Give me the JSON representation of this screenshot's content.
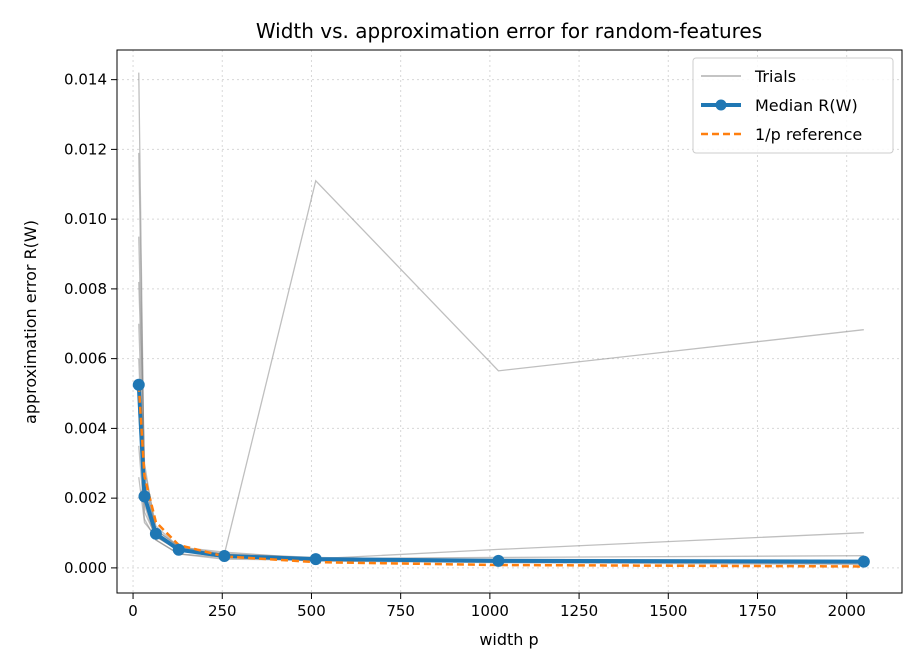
{
  "chart_data": {
    "type": "line",
    "title": "Width vs. approximation error for random-features",
    "xlabel": "width p",
    "ylabel": "approximation error  R(W)",
    "xlim": [
      -45,
      2155
    ],
    "ylim": [
      -0.00072,
      0.01485
    ],
    "xticks": [
      0,
      250,
      500,
      750,
      1000,
      1250,
      1500,
      1750,
      2000
    ],
    "yticks": [
      0.0,
      0.002,
      0.004,
      0.006,
      0.008,
      0.01,
      0.012,
      0.014
    ],
    "xtick_labels": [
      "0",
      "250",
      "500",
      "750",
      "1000",
      "1250",
      "1500",
      "1750",
      "2000"
    ],
    "ytick_labels": [
      "0.000",
      "0.002",
      "0.004",
      "0.006",
      "0.008",
      "0.010",
      "0.012",
      "0.014"
    ],
    "grid": true,
    "legend_position": "top-right",
    "x": [
      16,
      32,
      64,
      128,
      256,
      512,
      1024,
      2048
    ],
    "trials": [
      [
        0.0142,
        0.002,
        0.001,
        0.0005,
        0.0004,
        0.0111,
        0.00565,
        0.00683
      ],
      [
        0.0119,
        0.0025,
        0.0011,
        0.0006,
        0.00035,
        0.00026,
        0.00053,
        0.00101
      ],
      [
        0.0095,
        0.0028,
        0.0012,
        0.0006,
        0.00045,
        0.00027,
        0.0003,
        0.00035
      ],
      [
        0.0082,
        0.003,
        0.001,
        0.0005,
        0.0004,
        0.0003,
        0.0002,
        0.00015
      ],
      [
        0.007,
        0.0022,
        0.0009,
        0.0005,
        0.0003,
        0.00025,
        0.00025,
        0.0002
      ],
      [
        0.006,
        0.0018,
        0.0008,
        0.0004,
        0.00025,
        0.00022,
        0.00018,
        0.00012
      ],
      [
        0.0045,
        0.0016,
        0.0009,
        0.0005,
        0.0003,
        0.0002,
        0.00015,
        0.0001
      ],
      [
        0.0035,
        0.0014,
        0.0008,
        0.0004,
        0.0003,
        0.00025,
        0.00022,
        0.00018
      ],
      [
        0.0026,
        0.0013,
        0.0009,
        0.0005,
        0.00035,
        0.00028,
        0.00024,
        0.0002
      ],
      [
        0.002,
        0.0024,
        0.0011,
        0.0006,
        0.0004,
        0.00023,
        0.00021,
        0.00016
      ]
    ],
    "series": [
      {
        "name": "Median R(W)",
        "values": [
          0.00525,
          0.00205,
          0.00098,
          0.00052,
          0.00034,
          0.00025,
          0.0002,
          0.00018
        ],
        "color": "#1f77b4"
      },
      {
        "name": "1/p reference",
        "values": [
          0.00525,
          0.002625,
          0.0013125,
          0.00065625,
          0.000328125,
          0.0001640625,
          8.203125e-05,
          4.1015625e-05
        ],
        "color": "#ff7f0e"
      }
    ],
    "legend": [
      {
        "name": "Trials",
        "color": "#b0b0b0",
        "style": "thin-line"
      },
      {
        "name": "Median R(W)",
        "color": "#1f77b4",
        "style": "line-with-markers"
      },
      {
        "name": "1/p reference",
        "color": "#ff7f0e",
        "style": "dashed-line"
      }
    ]
  }
}
